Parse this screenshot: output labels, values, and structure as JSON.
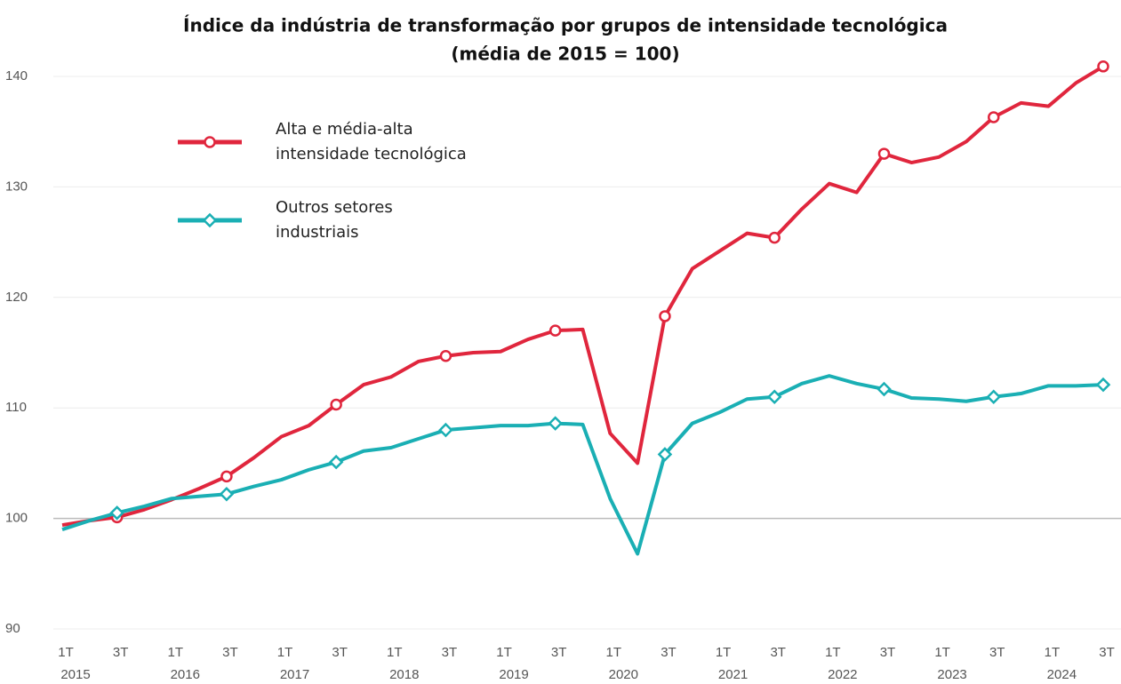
{
  "chart_data": {
    "type": "line",
    "title": "Índice da indústria  de transformação  por grupos  de intensidade tecnológica",
    "subtitle": "(média de 2015 = 100)",
    "categories": [
      "1T",
      null,
      "3T",
      null,
      "1T",
      null,
      "3T",
      null,
      "1T",
      null,
      "3T",
      null,
      "1T",
      null,
      "3T",
      null,
      "1T",
      null,
      "3T",
      null,
      "1T",
      null,
      "3T",
      null,
      "1T",
      null,
      "3T",
      null,
      "1T",
      null,
      "3T",
      null,
      "1T",
      null,
      "3T",
      null,
      "1T",
      null,
      "3T"
    ],
    "years": [
      "2015",
      "2016",
      "2017",
      "2018",
      "2019",
      "2020",
      "2021",
      "2022",
      "2023",
      "2024"
    ],
    "series": [
      {
        "name": "Alta e média-alta intensidade tecnológica",
        "color": "#e0263d",
        "values": [
          99.4,
          99.8,
          100.1,
          100.8,
          101.7,
          102.7,
          103.8,
          105.5,
          107.4,
          108.4,
          110.3,
          112.1,
          112.8,
          114.2,
          114.7,
          115.0,
          115.1,
          116.2,
          117.0,
          117.1,
          107.7,
          105.0,
          118.3,
          122.6,
          124.2,
          125.8,
          125.4,
          128.0,
          130.3,
          129.5,
          133.0,
          132.2,
          132.7,
          134.1,
          136.3,
          137.6,
          137.3,
          139.4,
          140.9
        ]
      },
      {
        "name": "Outros setores industriais",
        "color": "#1aafb4",
        "values": [
          99.0,
          99.8,
          100.5,
          101.1,
          101.8,
          102.0,
          102.2,
          102.9,
          103.5,
          104.4,
          105.1,
          106.1,
          106.4,
          107.2,
          108.0,
          108.2,
          108.4,
          108.4,
          108.6,
          108.5,
          101.8,
          96.8,
          105.8,
          108.6,
          109.6,
          110.8,
          111.0,
          112.2,
          112.9,
          112.2,
          111.7,
          110.9,
          110.8,
          110.6,
          111.0,
          111.3,
          112.0,
          112.0,
          112.1
        ]
      }
    ],
    "ylim": [
      90,
      140
    ],
    "yticks": [
      90,
      100,
      110,
      120,
      130,
      140
    ],
    "grid": true,
    "legend": "upper left"
  }
}
